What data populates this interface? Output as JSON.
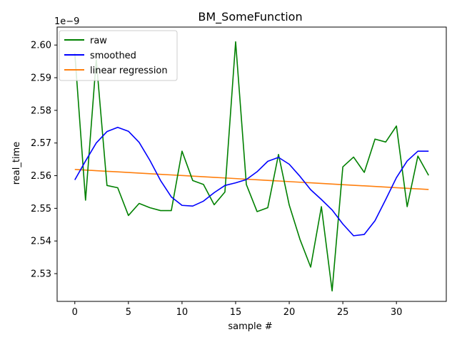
{
  "chart_data": {
    "type": "line",
    "title": "BM_SomeFunction",
    "xlabel": "sample #",
    "ylabel": "real_time",
    "offset_label": "1e−9",
    "xlim": [
      -1.65,
      34.65
    ],
    "ylim": [
      2.5215,
      2.6055
    ],
    "x_ticks": [
      0,
      5,
      10,
      15,
      20,
      25,
      30
    ],
    "y_ticks": [
      2.53,
      2.54,
      2.55,
      2.56,
      2.57,
      2.58,
      2.59,
      2.6
    ],
    "y_tick_labels": [
      "2.53",
      "2.54",
      "2.55",
      "2.56",
      "2.57",
      "2.58",
      "2.59",
      "2.60"
    ],
    "grid": false,
    "legend_position": "upper-left",
    "x": [
      0,
      1,
      2,
      3,
      4,
      5,
      6,
      7,
      8,
      9,
      10,
      11,
      12,
      13,
      14,
      15,
      16,
      17,
      18,
      19,
      20,
      21,
      22,
      23,
      24,
      25,
      26,
      27,
      28,
      29,
      30,
      31,
      32,
      33
    ],
    "series": [
      {
        "name": "raw",
        "color": "#008000",
        "values": [
          2.5975,
          2.5525,
          2.5955,
          2.557,
          2.5563,
          2.5478,
          2.5515,
          2.5502,
          2.5493,
          2.5493,
          2.5675,
          2.5585,
          2.5573,
          2.5511,
          2.555,
          2.601,
          2.5573,
          2.549,
          2.5502,
          2.5665,
          2.551,
          2.5405,
          2.532,
          2.5505,
          2.5247,
          2.5627,
          2.5657,
          2.561,
          2.5712,
          2.5703,
          2.5752,
          2.5505,
          2.566,
          2.5601
        ]
      },
      {
        "name": "smoothed",
        "color": "#0000ff",
        "values": [
          2.5587,
          2.5645,
          2.57,
          2.5735,
          2.5748,
          2.5736,
          2.5702,
          2.5647,
          2.5585,
          2.5535,
          2.5509,
          2.5507,
          2.5522,
          2.5548,
          2.557,
          2.5578,
          2.5588,
          2.5612,
          2.5644,
          2.5656,
          2.5635,
          2.5598,
          2.5557,
          2.5527,
          2.5495,
          2.5452,
          2.5416,
          2.542,
          2.5462,
          2.5527,
          2.5594,
          2.5645,
          2.5675,
          2.5675
        ]
      },
      {
        "name": "linear regression",
        "color": "#ff7f0e",
        "values": [
          2.5619,
          2.56171,
          2.56153,
          2.56134,
          2.56116,
          2.56097,
          2.56078,
          2.5606,
          2.56041,
          2.56023,
          2.56004,
          2.55985,
          2.55967,
          2.55948,
          2.5593,
          2.55911,
          2.55892,
          2.55874,
          2.55855,
          2.55837,
          2.55818,
          2.55799,
          2.55781,
          2.55762,
          2.55744,
          2.55725,
          2.55706,
          2.55688,
          2.55669,
          2.55651,
          2.55632,
          2.55613,
          2.55595,
          2.55576
        ]
      }
    ]
  }
}
